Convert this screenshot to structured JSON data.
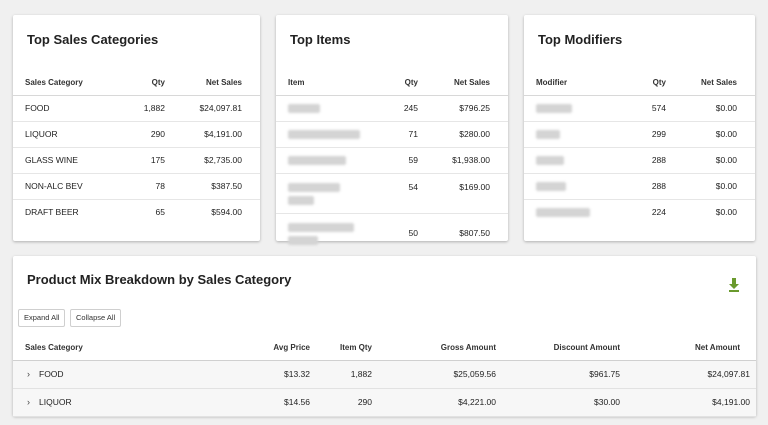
{
  "top_categories": {
    "title": "Top Sales Categories",
    "headers": {
      "name": "Sales Category",
      "qty": "Qty",
      "sales": "Net Sales"
    },
    "rows": [
      {
        "name": "FOOD",
        "qty": "1,882",
        "sales": "$24,097.81"
      },
      {
        "name": "LIQUOR",
        "qty": "290",
        "sales": "$4,191.00"
      },
      {
        "name": "GLASS WINE",
        "qty": "175",
        "sales": "$2,735.00"
      },
      {
        "name": "NON-ALC BEV",
        "qty": "78",
        "sales": "$387.50"
      },
      {
        "name": "DRAFT BEER",
        "qty": "65",
        "sales": "$594.00"
      }
    ]
  },
  "top_items": {
    "title": "Top Items",
    "headers": {
      "name": "Item",
      "qty": "Qty",
      "sales": "Net Sales"
    },
    "rows": [
      {
        "qty": "245",
        "sales": "$796.25"
      },
      {
        "qty": "71",
        "sales": "$280.00"
      },
      {
        "qty": "59",
        "sales": "$1,938.00"
      },
      {
        "qty": "54",
        "sales": "$169.00"
      },
      {
        "qty": "50",
        "sales": "$807.50"
      }
    ]
  },
  "top_modifiers": {
    "title": "Top Modifiers",
    "headers": {
      "name": "Modifier",
      "qty": "Qty",
      "sales": "Net Sales"
    },
    "rows": [
      {
        "qty": "574",
        "sales": "$0.00"
      },
      {
        "qty": "299",
        "sales": "$0.00"
      },
      {
        "qty": "288",
        "sales": "$0.00"
      },
      {
        "qty": "288",
        "sales": "$0.00"
      },
      {
        "qty": "224",
        "sales": "$0.00"
      }
    ]
  },
  "product_mix": {
    "title": "Product Mix Breakdown by Sales Category",
    "download_icon": "download-icon",
    "accent_color": "#6a9a2e",
    "expand_all_label": "Expand All",
    "collapse_all_label": "Collapse All",
    "headers": {
      "category": "Sales Category",
      "avg_price": "Avg Price",
      "item_qty": "Item Qty",
      "gross": "Gross Amount",
      "discount": "Discount Amount",
      "net": "Net Amount"
    },
    "rows": [
      {
        "category": "FOOD",
        "avg_price": "$13.32",
        "item_qty": "1,882",
        "gross": "$25,059.56",
        "discount": "$961.75",
        "net": "$24,097.81"
      },
      {
        "category": "LIQUOR",
        "avg_price": "$14.56",
        "item_qty": "290",
        "gross": "$4,221.00",
        "discount": "$30.00",
        "net": "$4,191.00"
      }
    ]
  }
}
